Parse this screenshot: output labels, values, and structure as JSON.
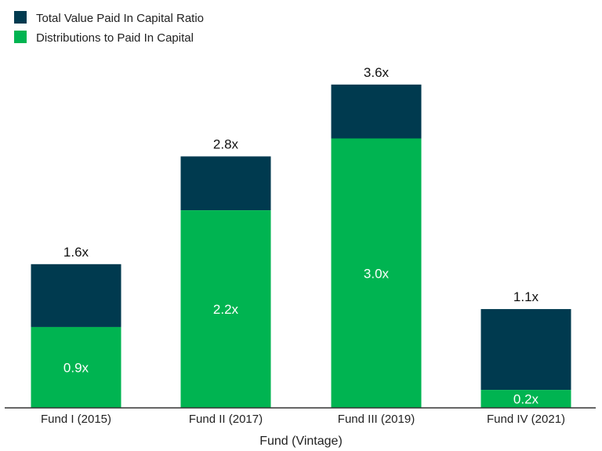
{
  "chart_data": {
    "type": "bar",
    "stacked": true,
    "xlabel": "Fund (Vintage)",
    "ylabel": "",
    "ylim": [
      0,
      4.0
    ],
    "grid": false,
    "legend_position": "top-left",
    "categories": [
      "Fund I (2015)",
      "Fund II (2017)",
      "Fund III (2019)",
      "Fund IV (2021)"
    ],
    "series": [
      {
        "name": "Distributions to Paid In Capital",
        "values": [
          0.9,
          2.2,
          3.0,
          0.2
        ],
        "labels": [
          "0.9x",
          "2.2x",
          "3.0x",
          "0.2x"
        ],
        "color": "#00b451"
      },
      {
        "name": "Total Value Paid In Capital Ratio",
        "totals": [
          1.6,
          2.8,
          3.6,
          1.1
        ],
        "labels": [
          "1.6x",
          "2.8x",
          "3.6x",
          "1.1x"
        ],
        "color": "#003a4f"
      }
    ],
    "legend": [
      {
        "name": "Total Value Paid In Capital Ratio",
        "color": "#003a4f"
      },
      {
        "name": "Distributions to Paid In Capital",
        "color": "#00b451"
      }
    ]
  }
}
